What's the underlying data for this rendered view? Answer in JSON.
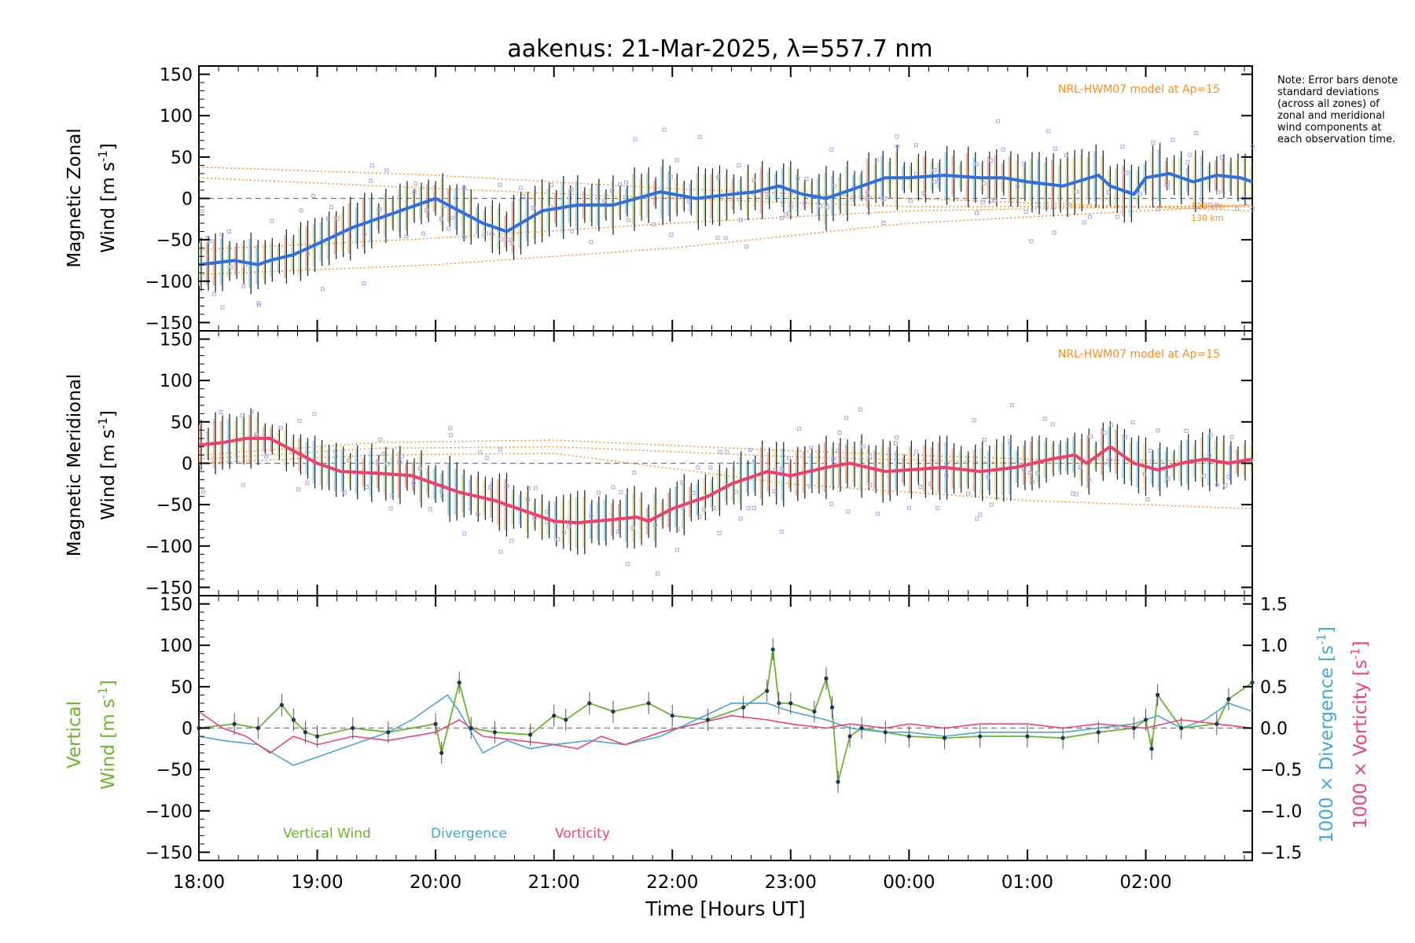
{
  "chart_data": {
    "type": "line",
    "title": "aakenus: 21-Mar-2025, λ=557.7 nm",
    "xlabel": "Time [Hours UT]",
    "x_ticks": [
      "18:00",
      "19:00",
      "20:00",
      "21:00",
      "22:00",
      "23:00",
      "00:00",
      "01:00",
      "02:00"
    ],
    "xlim_hours": [
      18.0,
      26.9
    ],
    "note": "Note: Error bars denote standard deviations (across all zones) of zonal and meridional wind components at each observation time.",
    "panels": [
      {
        "id": "zonal",
        "ylabel_line1": "Magnetic Zonal",
        "ylabel_line2": "Wind [m s",
        "ylabel_sup": "-1",
        "ylabel_close": "]",
        "ylim": [
          -160,
          160
        ],
        "yticks": [
          150,
          100,
          50,
          0,
          -50,
          -100,
          -150
        ],
        "ytick_labels": [
          "150",
          "100",
          "50",
          "0",
          "−50",
          "−100",
          "−150"
        ],
        "model_label": "NRL-HWM07 model at Ap=15",
        "model_height_labels": [
          "120 km",
          "130 km"
        ],
        "mean_series": {
          "name": "Mean zonal wind",
          "x": [
            18.0,
            18.3,
            18.5,
            18.6,
            18.8,
            19.0,
            19.3,
            19.6,
            19.9,
            20.0,
            20.2,
            20.4,
            20.6,
            20.9,
            21.2,
            21.5,
            21.7,
            21.9,
            22.2,
            22.5,
            22.7,
            22.9,
            23.1,
            23.3,
            23.5,
            23.8,
            24.0,
            24.3,
            24.6,
            24.8,
            25.0,
            25.3,
            25.6,
            25.7,
            25.9,
            26.0,
            26.2,
            26.4,
            26.6,
            26.8,
            26.9
          ],
          "y": [
            -80,
            -75,
            -80,
            -75,
            -68,
            -55,
            -35,
            -20,
            -5,
            0,
            -15,
            -30,
            -40,
            -15,
            -8,
            -8,
            0,
            8,
            0,
            5,
            8,
            15,
            5,
            0,
            10,
            25,
            25,
            28,
            25,
            25,
            20,
            15,
            28,
            15,
            5,
            25,
            30,
            20,
            28,
            25,
            20
          ]
        },
        "model_curves": [
          {
            "name": "model-1",
            "x": [
              18.0,
              20.0,
              22.0,
              24.0,
              26.9
            ],
            "y": [
              38,
              28,
              12,
              0,
              -15
            ]
          },
          {
            "name": "model-2",
            "x": [
              18.0,
              20.0,
              22.0,
              24.0,
              26.9
            ],
            "y": [
              25,
              12,
              0,
              -10,
              -10
            ]
          },
          {
            "name": "model-3",
            "x": [
              18.0,
              20.0,
              22.0,
              24.0,
              26.9
            ],
            "y": [
              -62,
              -48,
              -30,
              -15,
              -8
            ]
          },
          {
            "name": "model-4",
            "x": [
              18.0,
              20.0,
              22.0,
              24.0,
              26.9
            ],
            "y": [
              -92,
              -80,
              -60,
              -30,
              -8
            ]
          }
        ]
      },
      {
        "id": "meridional",
        "ylabel_line1": "Magnetic Meridional",
        "ylabel_line2": "Wind [m s",
        "ylabel_sup": "-1",
        "ylabel_close": "]",
        "ylim": [
          -160,
          160
        ],
        "yticks": [
          150,
          100,
          50,
          0,
          -50,
          -100,
          -150
        ],
        "ytick_labels": [
          "150",
          "100",
          "50",
          "0",
          "−50",
          "−100",
          "−150"
        ],
        "model_label": "NRL-HWM07 model at Ap=15",
        "mean_series": {
          "name": "Mean meridional wind",
          "x": [
            18.0,
            18.2,
            18.4,
            18.6,
            18.8,
            19.0,
            19.2,
            19.5,
            19.8,
            20.0,
            20.2,
            20.5,
            20.8,
            21.0,
            21.2,
            21.5,
            21.7,
            21.8,
            22.0,
            22.3,
            22.5,
            22.8,
            23.0,
            23.3,
            23.5,
            23.8,
            24.0,
            24.3,
            24.6,
            24.9,
            25.2,
            25.4,
            25.5,
            25.7,
            25.9,
            26.1,
            26.3,
            26.5,
            26.7,
            26.9
          ],
          "y": [
            22,
            25,
            30,
            30,
            15,
            0,
            -10,
            -12,
            -15,
            -25,
            -35,
            -45,
            -60,
            -70,
            -72,
            -68,
            -65,
            -70,
            -55,
            -40,
            -25,
            -10,
            -15,
            -5,
            0,
            -10,
            -8,
            -5,
            -10,
            -5,
            5,
            10,
            0,
            20,
            0,
            -8,
            0,
            5,
            0,
            5
          ]
        },
        "model_curves": [
          {
            "name": "model-1",
            "x": [
              18.0,
              19.5,
              21.0,
              23.0,
              25.0,
              26.9
            ],
            "y": [
              10,
              25,
              28,
              15,
              5,
              2
            ]
          },
          {
            "name": "model-2",
            "x": [
              18.0,
              19.5,
              21.0,
              23.0,
              25.0,
              26.9
            ],
            "y": [
              5,
              18,
              20,
              8,
              0,
              0
            ]
          },
          {
            "name": "model-3",
            "x": [
              18.0,
              19.5,
              21.0,
              23.0,
              25.0,
              26.9
            ],
            "y": [
              0,
              10,
              12,
              -25,
              -45,
              -55
            ]
          }
        ]
      },
      {
        "id": "vertical",
        "ylabel_line1": "Vertical",
        "ylabel_line2": "Wind [m s",
        "ylabel_sup": "-1",
        "ylabel_close": "]",
        "ylim": [
          -160,
          160
        ],
        "yticks": [
          150,
          100,
          50,
          0,
          -50,
          -100,
          -150
        ],
        "ytick_labels": [
          "150",
          "100",
          "50",
          "0",
          "−50",
          "−100",
          "−150"
        ],
        "right_axis": {
          "ylim": [
            -1.6,
            1.6
          ],
          "yticks": [
            1.5,
            1.0,
            0.5,
            0.0,
            -0.5,
            -1.0,
            -1.5
          ],
          "ytick_labels": [
            "1.5",
            "1.0",
            "0.5",
            "0.0",
            "−0.5",
            "−1.0",
            "−1.5"
          ],
          "label_divergence": "1000 × Divergence [s",
          "label_vorticity": "1000 × Vorticity [s",
          "label_sup": "-1",
          "label_close": "]"
        },
        "legend": [
          "Vertical Wind",
          "Divergence",
          "Vorticity"
        ],
        "series": [
          {
            "name": "Vertical Wind",
            "x": [
              18.0,
              18.3,
              18.5,
              18.7,
              18.8,
              18.9,
              19.0,
              19.3,
              19.6,
              20.0,
              20.05,
              20.2,
              20.3,
              20.5,
              20.8,
              21.0,
              21.1,
              21.3,
              21.5,
              21.8,
              22.0,
              22.3,
              22.6,
              22.8,
              22.85,
              22.9,
              23.0,
              23.2,
              23.3,
              23.35,
              23.4,
              23.5,
              23.6,
              23.8,
              24.0,
              24.3,
              24.6,
              25.0,
              25.3,
              25.6,
              25.9,
              26.0,
              26.05,
              26.1,
              26.3,
              26.6,
              26.7,
              26.9
            ],
            "y": [
              0,
              5,
              0,
              28,
              10,
              -5,
              -10,
              0,
              -5,
              5,
              -30,
              55,
              0,
              -5,
              -8,
              15,
              10,
              30,
              20,
              30,
              15,
              10,
              25,
              45,
              95,
              30,
              30,
              20,
              60,
              25,
              -65,
              -10,
              0,
              -5,
              -10,
              -12,
              -10,
              -10,
              -12,
              -5,
              0,
              10,
              -25,
              40,
              0,
              5,
              35,
              55
            ]
          },
          {
            "name": "Divergence",
            "x": [
              18.0,
              18.2,
              18.5,
              18.8,
              19.0,
              19.3,
              19.6,
              19.8,
              20.0,
              20.1,
              20.2,
              20.4,
              20.6,
              20.8,
              21.0,
              21.3,
              21.6,
              21.9,
              22.2,
              22.5,
              22.8,
              23.0,
              23.3,
              23.5,
              23.8,
              24.0,
              24.3,
              24.6,
              25.0,
              25.3,
              25.6,
              25.9,
              26.1,
              26.3,
              26.5,
              26.7,
              26.9
            ],
            "y": [
              -0.1,
              -0.15,
              -0.2,
              -0.45,
              -0.35,
              -0.2,
              -0.05,
              0.1,
              0.3,
              0.4,
              0.2,
              -0.3,
              -0.15,
              -0.25,
              -0.2,
              -0.15,
              -0.2,
              -0.1,
              0.1,
              0.3,
              0.3,
              0.2,
              0.1,
              0.0,
              -0.05,
              -0.05,
              -0.1,
              -0.05,
              -0.05,
              -0.05,
              0.0,
              0.05,
              0.15,
              0.0,
              0.1,
              0.3,
              0.2
            ]
          },
          {
            "name": "Vorticity",
            "x": [
              18.0,
              18.2,
              18.4,
              18.6,
              18.8,
              19.0,
              19.3,
              19.6,
              19.8,
              20.0,
              20.2,
              20.4,
              20.7,
              21.0,
              21.2,
              21.4,
              21.6,
              21.9,
              22.2,
              22.5,
              22.8,
              23.0,
              23.3,
              23.5,
              23.8,
              24.0,
              24.3,
              24.6,
              25.0,
              25.3,
              25.6,
              26.0,
              26.3,
              26.6,
              26.9
            ],
            "y": [
              0.2,
              0.0,
              -0.1,
              -0.3,
              -0.1,
              -0.2,
              -0.1,
              -0.15,
              -0.1,
              -0.05,
              0.1,
              -0.1,
              -0.15,
              -0.2,
              -0.25,
              -0.1,
              -0.2,
              -0.05,
              0.05,
              0.15,
              0.1,
              0.05,
              0.0,
              0.05,
              0.0,
              0.05,
              0.0,
              0.05,
              0.05,
              0.0,
              0.05,
              0.0,
              0.1,
              0.05,
              0.0
            ]
          }
        ]
      }
    ]
  },
  "colors": {
    "zonal_mean": "#2f6fdf",
    "meridional_mean": "#f0406a",
    "model": "#ff8a1e",
    "scatter": "#a9a3e6",
    "vertical": "#6ab52e",
    "divergence": "#45a5dc",
    "vorticity": "#f0407a",
    "axis": "#000000"
  }
}
